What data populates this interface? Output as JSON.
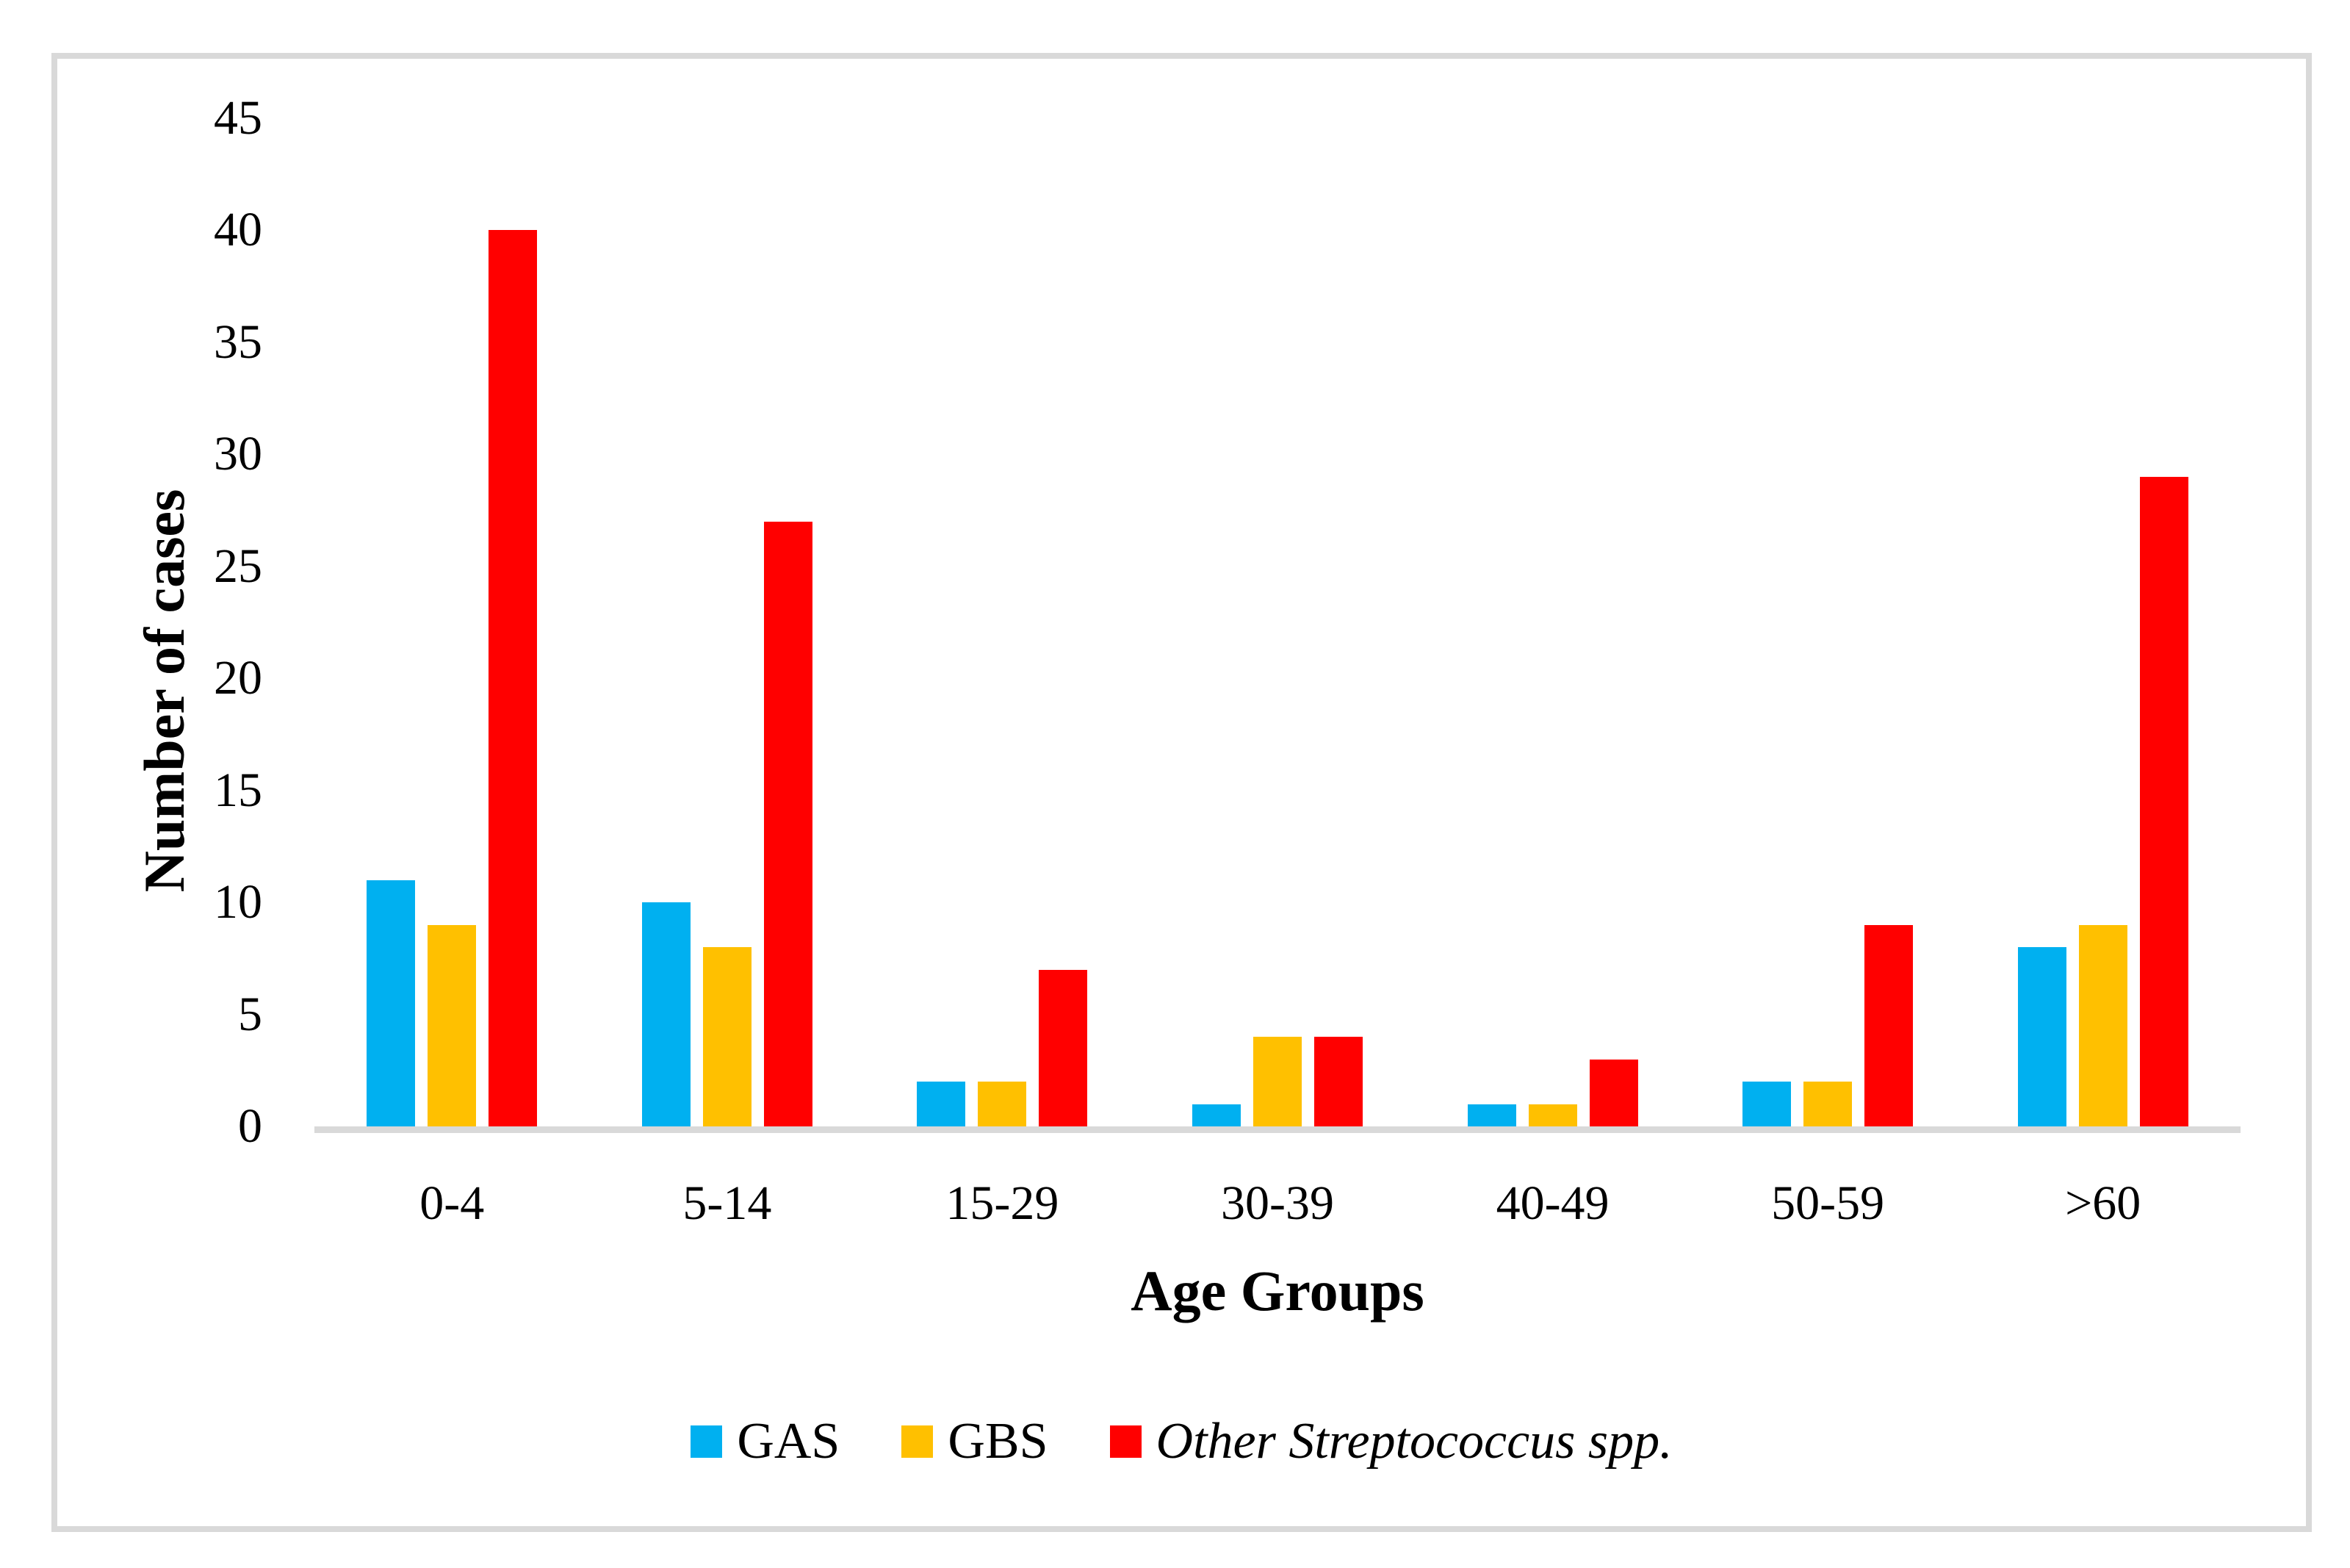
{
  "figure": {
    "background_color": "#ffffff",
    "frame_border_color": "#d9d9d9"
  },
  "chart_data": {
    "type": "bar",
    "title": "",
    "xlabel": "Age Groups",
    "ylabel": "Number of cases",
    "categories": [
      "0-4",
      "5-14",
      "15-29",
      "30-39",
      "40-49",
      "50-59",
      ">60"
    ],
    "series": [
      {
        "name": "GAS",
        "color": "#00b0f0",
        "italic": false,
        "values": [
          11,
          10,
          2,
          1,
          1,
          2,
          8
        ]
      },
      {
        "name": "GBS",
        "color": "#ffc000",
        "italic": false,
        "values": [
          9,
          8,
          2,
          4,
          1,
          2,
          9
        ]
      },
      {
        "name": "Other Streptococcus spp.",
        "color": "#ff0000",
        "italic": true,
        "values": [
          40,
          27,
          7,
          4,
          3,
          9,
          29
        ]
      }
    ],
    "ylim": [
      0,
      45
    ],
    "yticks": [
      0,
      5,
      10,
      15,
      20,
      25,
      30,
      35,
      40,
      45
    ],
    "grid": "off",
    "legend_position": "bottom",
    "axis_line_color": "#d9d9d9"
  }
}
